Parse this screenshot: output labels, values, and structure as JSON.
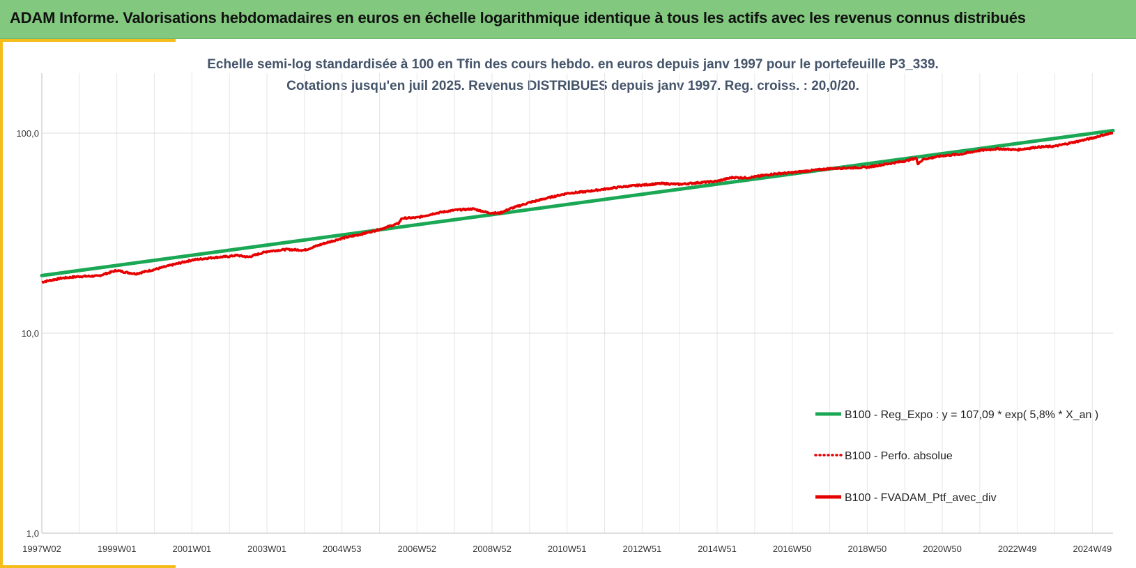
{
  "header": {
    "title": "ADAM Informe. Valorisations hebdomadaires en euros en échelle logarithmique identique à tous les actifs avec les revenus connus distribués"
  },
  "colors": {
    "header_bg": "#82c97f",
    "accent": "#f5bd1a",
    "reg_line": "#1aa855",
    "perf_line": "#e60000",
    "subtitle": "#44546a"
  },
  "chart_data": {
    "type": "line",
    "title": "Echelle semi-log standardisée à 100 en Tfin des cours hebdo. en euros depuis janv 1997 pour le portefeuille P3_339.",
    "subtitle": "Cotations jusqu'en juil 2025. Revenus DISTRIBUES depuis janv 1997. Reg. croiss. : 20,0/20.",
    "xlabel": "",
    "ylabel": "",
    "y_scale": "log",
    "ylim": [
      1,
      200
    ],
    "y_ticks": [
      "1,0",
      "10,0",
      "100,0"
    ],
    "x_range": [
      1997.0,
      2025.55
    ],
    "x_ticks": [
      {
        "label": "1997W02",
        "t": 1997.0
      },
      {
        "label": "1999W01",
        "t": 1999.0
      },
      {
        "label": "2001W01",
        "t": 2001.0
      },
      {
        "label": "2003W01",
        "t": 2003.0
      },
      {
        "label": "2004W53",
        "t": 2005.0
      },
      {
        "label": "2006W52",
        "t": 2007.0
      },
      {
        "label": "2008W52",
        "t": 2009.0
      },
      {
        "label": "2010W51",
        "t": 2011.0
      },
      {
        "label": "2012W51",
        "t": 2013.0
      },
      {
        "label": "2014W51",
        "t": 2015.0
      },
      {
        "label": "2016W50",
        "t": 2017.0
      },
      {
        "label": "2018W50",
        "t": 2019.0
      },
      {
        "label": "2020W50",
        "t": 2021.0
      },
      {
        "label": "2022W49",
        "t": 2023.0
      },
      {
        "label": "2024W49",
        "t": 2025.0
      }
    ],
    "grid": true,
    "legend_position": "bottom-right",
    "series": [
      {
        "name": "B100 - Reg_Expo : y = 107,09 * exp( 5,8% *  X_an )",
        "style": "solid",
        "color": "#1aa855",
        "points": [
          [
            1997.0,
            19.4
          ],
          [
            2025.55,
            103.0
          ]
        ]
      },
      {
        "name": "B100 - Perfo. absolue",
        "style": "dotted",
        "color": "#e60000",
        "points": []
      },
      {
        "name": "B100 - FVADAM_Ptf_avec_div",
        "style": "solid",
        "color": "#e60000",
        "points": [
          [
            1997.0,
            18.0
          ],
          [
            1997.5,
            18.8
          ],
          [
            1998.0,
            19.2
          ],
          [
            1998.5,
            19.3
          ],
          [
            1999.0,
            20.6
          ],
          [
            1999.2,
            20.2
          ],
          [
            1999.5,
            19.8
          ],
          [
            2000.0,
            20.8
          ],
          [
            2000.5,
            22.0
          ],
          [
            2001.0,
            23.2
          ],
          [
            2001.5,
            23.8
          ],
          [
            2002.0,
            24.2
          ],
          [
            2002.2,
            24.5
          ],
          [
            2002.5,
            24.0
          ],
          [
            2003.0,
            25.6
          ],
          [
            2003.5,
            26.2
          ],
          [
            2004.0,
            26.0
          ],
          [
            2004.5,
            28.0
          ],
          [
            2005.0,
            29.8
          ],
          [
            2005.5,
            31.2
          ],
          [
            2006.0,
            33.0
          ],
          [
            2006.5,
            35.3
          ],
          [
            2006.6,
            37.5
          ],
          [
            2007.0,
            37.8
          ],
          [
            2007.5,
            39.8
          ],
          [
            2008.0,
            41.2
          ],
          [
            2008.5,
            41.8
          ],
          [
            2008.9,
            40.0
          ],
          [
            2009.2,
            39.8
          ],
          [
            2009.5,
            42.0
          ],
          [
            2010.0,
            45.0
          ],
          [
            2010.5,
            47.5
          ],
          [
            2011.0,
            50.0
          ],
          [
            2011.5,
            51.0
          ],
          [
            2012.0,
            52.5
          ],
          [
            2012.5,
            54.0
          ],
          [
            2013.0,
            55.0
          ],
          [
            2013.5,
            56.0
          ],
          [
            2014.0,
            55.5
          ],
          [
            2014.5,
            56.5
          ],
          [
            2015.0,
            57.5
          ],
          [
            2015.4,
            60.0
          ],
          [
            2015.8,
            59.8
          ],
          [
            2016.0,
            60.5
          ],
          [
            2016.5,
            62.5
          ],
          [
            2017.0,
            63.5
          ],
          [
            2017.5,
            65.0
          ],
          [
            2018.0,
            66.5
          ],
          [
            2018.5,
            67.0
          ],
          [
            2019.0,
            67.5
          ],
          [
            2019.5,
            70.0
          ],
          [
            2020.0,
            72.5
          ],
          [
            2020.3,
            75.0
          ],
          [
            2020.35,
            70.5
          ],
          [
            2020.5,
            74.0
          ],
          [
            2021.0,
            77.0
          ],
          [
            2021.5,
            78.5
          ],
          [
            2022.0,
            82.0
          ],
          [
            2022.5,
            83.5
          ],
          [
            2023.0,
            82.5
          ],
          [
            2023.5,
            85.0
          ],
          [
            2024.0,
            86.0
          ],
          [
            2024.5,
            90.0
          ],
          [
            2025.0,
            94.5
          ],
          [
            2025.3,
            98.0
          ],
          [
            2025.55,
            100.0
          ]
        ]
      }
    ]
  }
}
